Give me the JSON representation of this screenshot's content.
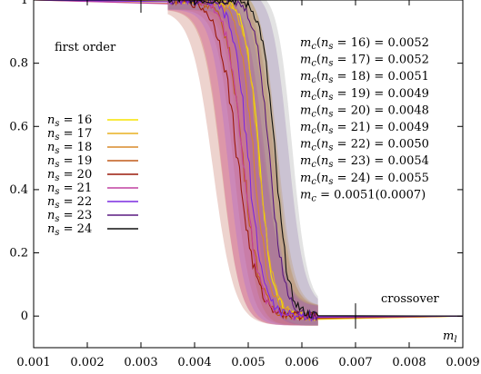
{
  "chart_data": {
    "type": "line",
    "xlabel": "m_l",
    "ylabel": "",
    "xlim": [
      0.001,
      0.009
    ],
    "ylim": [
      -0.1,
      1.0
    ],
    "x_ticks": [
      0.001,
      0.002,
      0.003,
      0.004,
      0.005,
      0.006,
      0.007,
      0.008,
      0.009
    ],
    "x_tick_labels": [
      "0.001",
      "0.002",
      "0.003",
      "0.004",
      "0.005",
      "0.006",
      "0.007",
      "0.008",
      "0.009"
    ],
    "y_ticks": [
      0,
      0.2,
      0.4,
      0.6,
      0.8,
      1
    ],
    "y_tick_labels": [
      "0",
      "0.2",
      "0.4",
      "0.6",
      "0.8",
      "1"
    ],
    "grid": false,
    "legend_position": "left",
    "annotations": {
      "first_order": "first order",
      "crossover": "crossover",
      "first_order_marker_x": 0.003,
      "crossover_marker_x": 0.007
    },
    "mc_list": [
      "m_c(n_s = 16) = 0.0052",
      "m_c(n_s = 17) = 0.0052",
      "m_c(n_s = 18) = 0.0051",
      "m_c(n_s = 19) = 0.0049",
      "m_c(n_s = 20) = 0.0048",
      "m_c(n_s = 21) = 0.0049",
      "m_c(n_s = 22) = 0.0050",
      "m_c(n_s = 23) = 0.0054",
      "m_c(n_s = 24) = 0.0055",
      "m_c = 0.0051(0.0007)"
    ],
    "series": [
      {
        "name": "n_s = 16",
        "color": "#f5e400",
        "band_color": "#f0d000",
        "center": 0.0052,
        "width": 0.00028
      },
      {
        "name": "n_s = 17",
        "color": "#e8b020",
        "band_color": "#e0a020",
        "center": 0.0052,
        "width": 0.0003
      },
      {
        "name": "n_s = 18",
        "color": "#d88a2a",
        "band_color": "#d47a30",
        "center": 0.0051,
        "width": 0.00032
      },
      {
        "name": "n_s = 19",
        "color": "#c05a1a",
        "band_color": "#c86040",
        "center": 0.0049,
        "width": 0.00035
      },
      {
        "name": "n_s = 20",
        "color": "#9a1a0a",
        "band_color": "#c06050",
        "center": 0.0048,
        "width": 0.0004
      },
      {
        "name": "n_s = 21",
        "color": "#c040a0",
        "band_color": "#d050b0",
        "center": 0.0049,
        "width": 0.00034
      },
      {
        "name": "n_s = 22",
        "color": "#7a2ae0",
        "band_color": "#a060e0",
        "center": 0.005,
        "width": 0.00032
      },
      {
        "name": "n_s = 23",
        "color": "#5a1a80",
        "band_color": "#8a60b0",
        "center": 0.0054,
        "width": 0.0003
      },
      {
        "name": "n_s = 24",
        "color": "#101010",
        "band_color": "#999999",
        "center": 0.0055,
        "width": 0.00028
      }
    ]
  }
}
